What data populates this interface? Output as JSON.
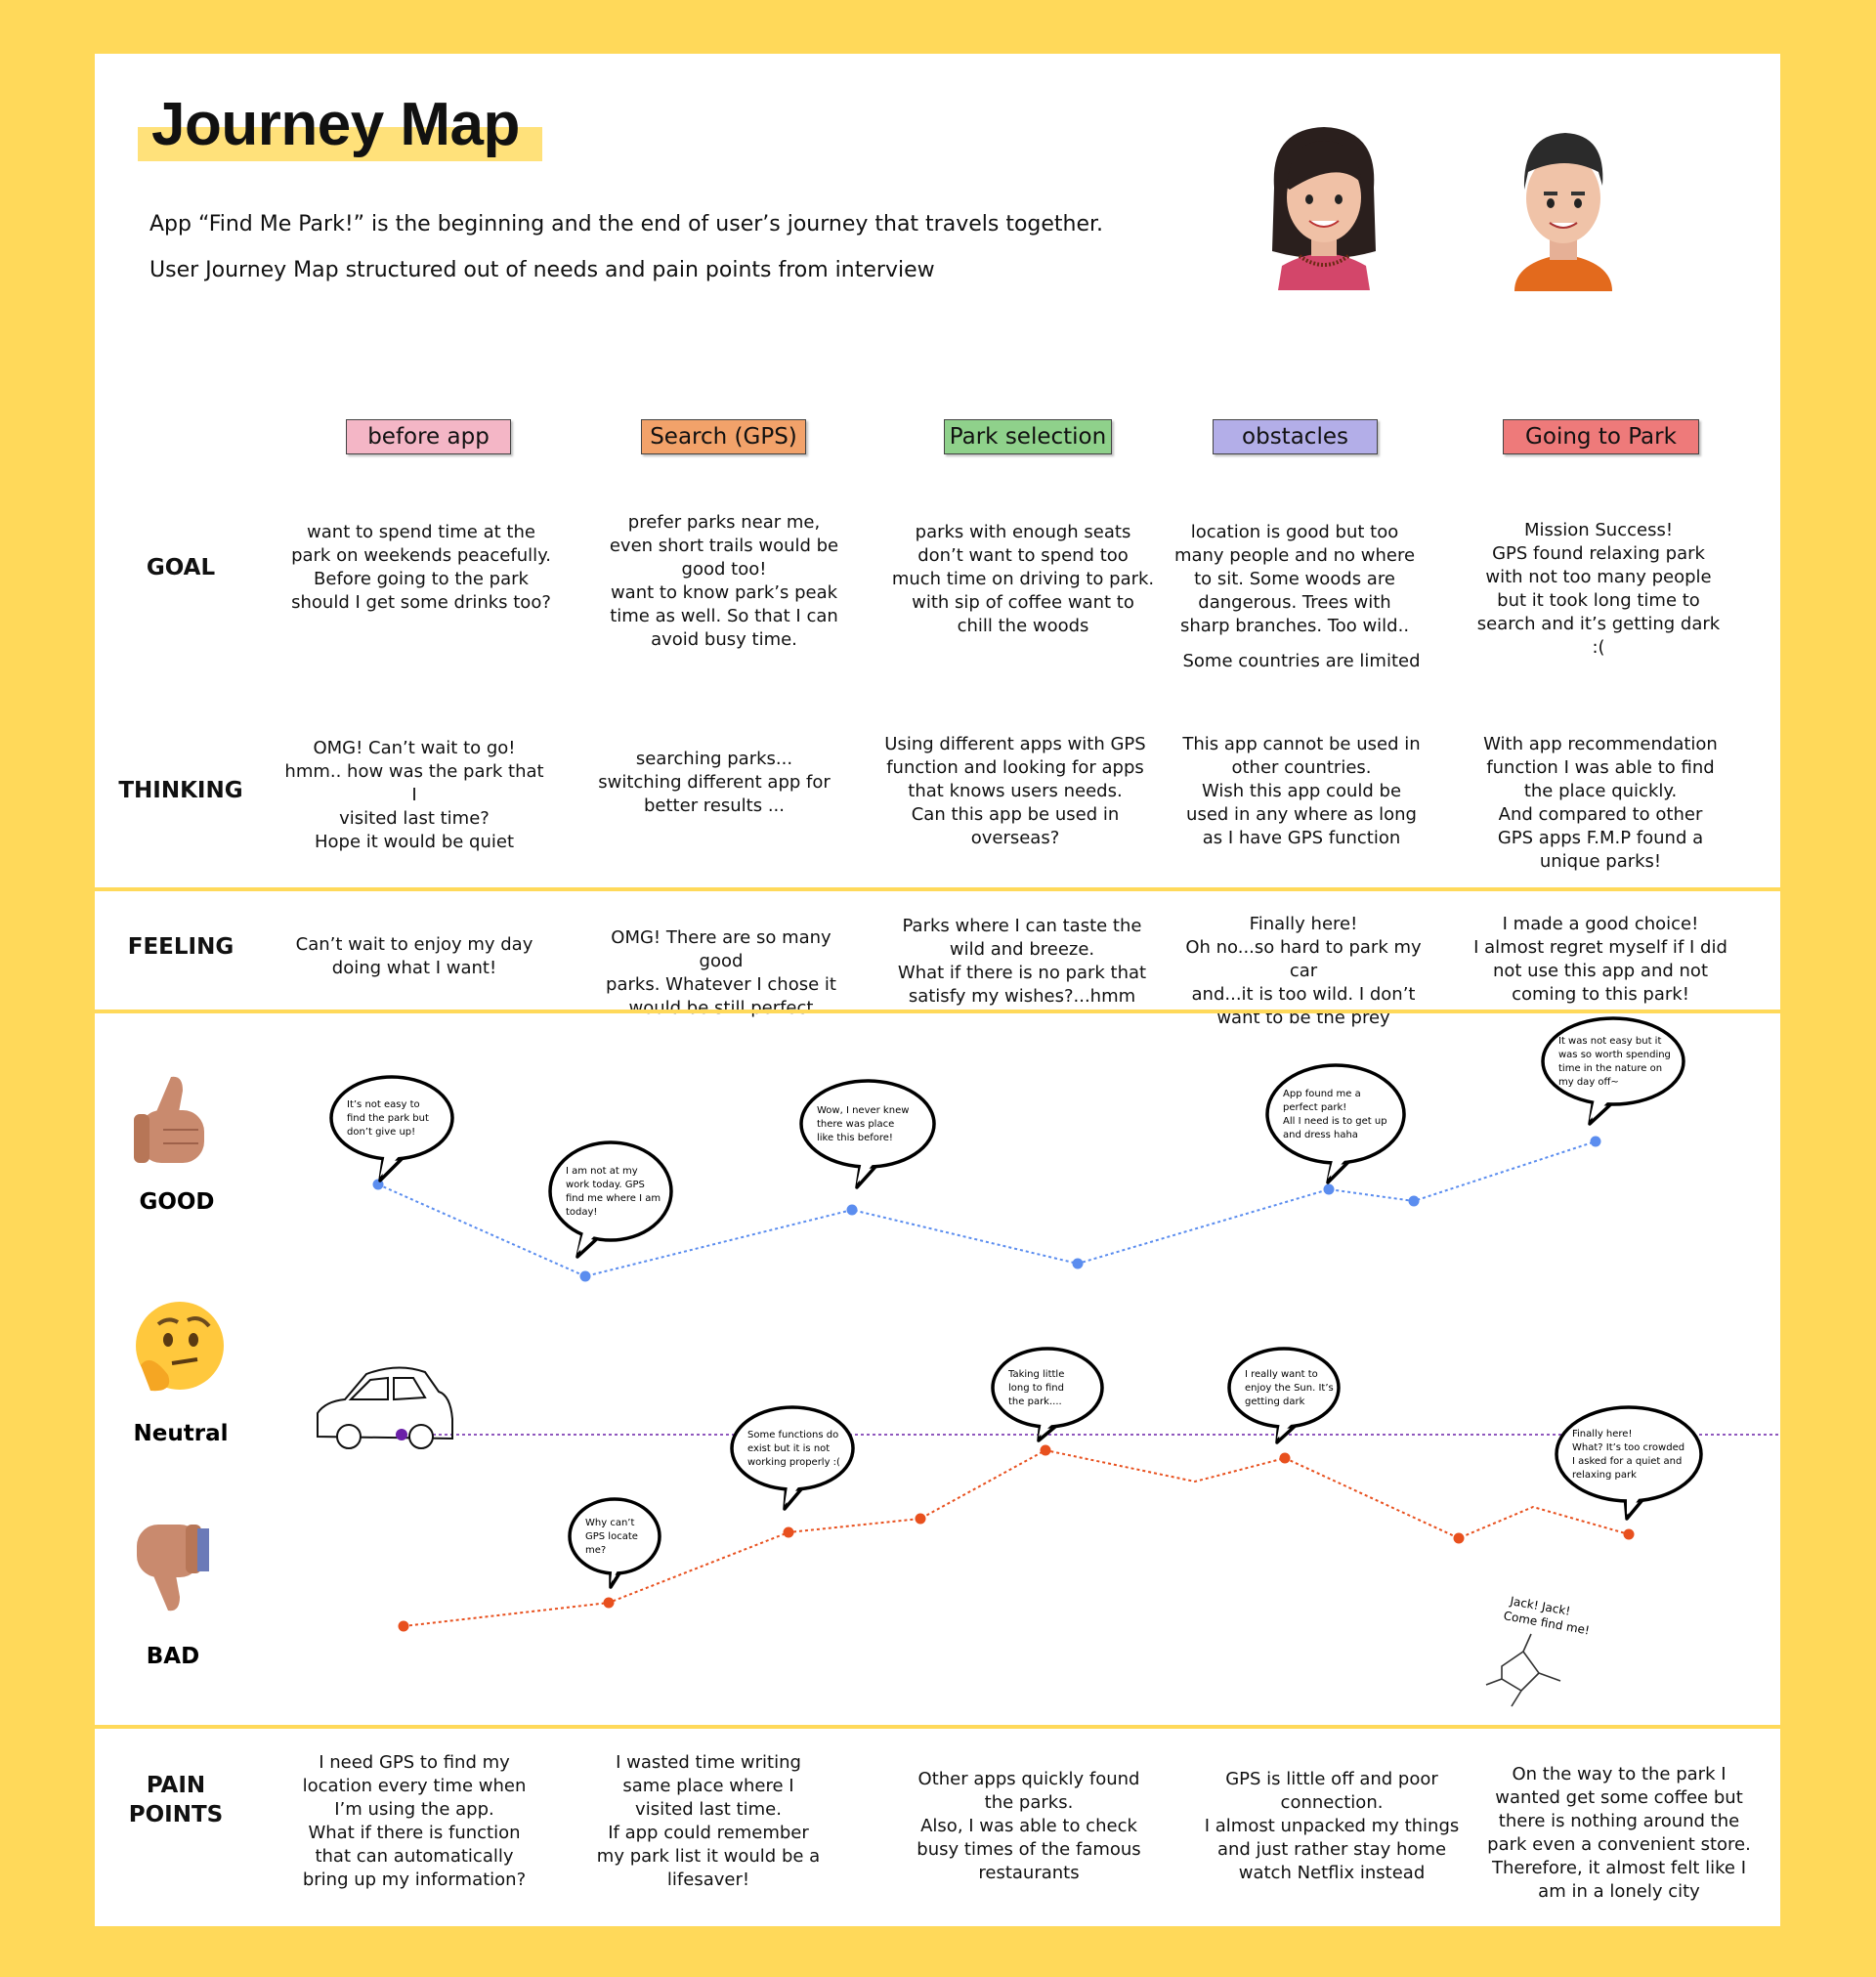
{
  "header": {
    "title": "Journey Map",
    "intro_line1": "App “Find Me Park!” is the beginning and the end of user’s journey that travels together.",
    "intro_line2": "User Journey Map structured out of needs and pain points from interview"
  },
  "stages": [
    {
      "label": "before app",
      "color": "#f4b6c6"
    },
    {
      "label": "Search (GPS)",
      "color": "#f2a26a"
    },
    {
      "label": "Park selection",
      "color": "#8fd18b"
    },
    {
      "label": "obstacles",
      "color": "#b3aee8"
    },
    {
      "label": "Going to Park",
      "color": "#ee7a7a"
    }
  ],
  "rows": {
    "goal": {
      "label": "GOAL",
      "cells": [
        "want to spend time at the\npark on weekends peacefully.\nBefore going to the park\nshould I get some drinks too?",
        "prefer parks near me,\neven short trails would be\ngood too!\nwant to know park’s peak\ntime as well. So that I can\navoid busy time.",
        "parks with enough seats\ndon’t want to spend too\nmuch time on driving to park.\nwith sip of coffee want to\nchill the woods",
        "location is good but too\nmany people and no where\nto sit. Some woods are\ndangerous. Trees with\nsharp branches. Too wild..",
        "Mission Success!\nGPS found relaxing park\nwith not too many people\nbut it took long time to\nsearch and it’s getting dark\n:("
      ],
      "extra_note": "Some countries are limited"
    },
    "thinking": {
      "label": "THINKING",
      "cells": [
        "OMG! Can’t wait to go!\nhmm.. how was the park that I\nvisited last time?\nHope it would be quiet",
        "searching parks...\nswitching different app for\nbetter results ...",
        "Using different apps with GPS\nfunction and looking for apps\nthat knows users needs.\nCan this app be used in\noverseas?",
        "This app cannot be used in\nother countries.\nWish this app could be\nused in any where as long\nas I have GPS function",
        "With app recommendation\nfunction I was able to find\nthe place quickly.\nAnd compared to other\nGPS apps F.M.P found a\nunique parks!"
      ]
    },
    "feeling": {
      "label": "FEELING",
      "cells": [
        "Can’t wait to enjoy my day\ndoing what I want!",
        "OMG! There are so many good\nparks. Whatever I chose it\nwould be still perfect",
        "Parks where I can taste the\nwild and breeze.\nWhat if there is no park that\nsatisfy my wishes?...hmm",
        "Finally here!\nOh no...so hard to park my car\nand...it is too wild. I don’t\nwant to be the prey",
        "I made a good choice!\nI almost regret myself if I did\nnot use this app and not\ncoming to this park!"
      ]
    },
    "pain": {
      "label": "PAIN\nPOINTS",
      "cells": [
        "I need GPS to find my\nlocation every time when\nI’m using the app.\nWhat if there is function\nthat can automatically\nbring up my information?",
        "I wasted time writing\nsame place where I\nvisited last time.\nIf app could remember\nmy park list it would be a\nlifesaver!",
        "Other apps quickly found\nthe parks.\nAlso, I was able to check\nbusy times of the famous\nrestaurants",
        "GPS is little off and poor\nconnection.\nI almost unpacked my things\nand just rather stay home\nwatch Netflix instead",
        "On the way to the park I\nwanted get some coffee but\nthere is nothing around the\npark even a convenient store.\nTherefore, it almost felt like I\nam in a lonely city"
      ]
    }
  },
  "emotion_labels": {
    "good": "GOOD",
    "neutral": "Neutral",
    "bad": "BAD"
  },
  "speech_bubbles": {
    "good": [
      "It’s not easy to\nfind the park but\ndon’t give up!",
      "I am not at my\nwork today. GPS\nfind me where I am\ntoday!",
      "Wow, I never knew\nthere was place\nlike this before!",
      "App found me a\nperfect park!\nAll I need is to get up\nand dress haha",
      "It was not easy but it\nwas so worth spending\ntime in the nature on\nmy day off~"
    ],
    "bad": [
      "Why can’t\nGPS locate\nme?",
      "Some functions do\nexist but it is not\nworking properly :(",
      "Taking little\nlong to find\nthe park....",
      "I really want to\nenjoy the Sun. It’s\ngetting dark",
      "Finally here!\nWhat? It’s too crowded\nI asked for a quiet and\nrelaxing park"
    ]
  },
  "sketch_note": "Jack! Jack!\nCome find me!",
  "colors": {
    "good_line": "#5b8def",
    "bad_line": "#e8501e",
    "neutral_line": "#6b21a8",
    "highlight": "#ffe17a"
  }
}
